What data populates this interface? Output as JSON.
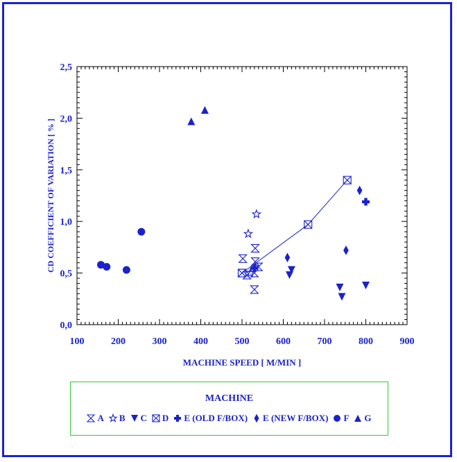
{
  "chart_data": {
    "type": "scatter",
    "title": "",
    "xlabel": "MACHINE SPEED  [ M/MIN ]",
    "ylabel": "CD COEFFICIENT OF VARIATION  [ % ]",
    "xlim": [
      100,
      900
    ],
    "ylim": [
      0,
      2.5
    ],
    "xticks": [
      "100",
      "200",
      "300",
      "400",
      "500",
      "600",
      "700",
      "800",
      "900"
    ],
    "yticks": [
      "0,0",
      "0,5",
      "1,0",
      "1,5",
      "2,0",
      "2,5"
    ],
    "grid": false,
    "legend_title": "MACHINE",
    "legend_position": "bottom",
    "color": "#1a22cc",
    "series": [
      {
        "name": "A",
        "marker": "hourglass",
        "points": [
          [
            500,
            0.5
          ],
          [
            502,
            0.64
          ],
          [
            512,
            0.48
          ],
          [
            530,
            0.34
          ],
          [
            530,
            0.5
          ],
          [
            532,
            0.61
          ],
          [
            532,
            0.74
          ],
          [
            540,
            0.56
          ]
        ]
      },
      {
        "name": "B",
        "marker": "star",
        "points": [
          [
            515,
            0.88
          ],
          [
            535,
            1.07
          ],
          [
            520,
            0.5
          ]
        ]
      },
      {
        "name": "C",
        "marker": "triangle-down",
        "points": [
          [
            615,
            0.48
          ],
          [
            620,
            0.53
          ],
          [
            737,
            0.36
          ],
          [
            742,
            0.27
          ],
          [
            800,
            0.38
          ]
        ]
      },
      {
        "name": "D",
        "marker": "boxed-x",
        "points": [
          [
            500,
            0.5
          ],
          [
            660,
            0.97
          ],
          [
            755,
            1.4
          ]
        ],
        "line": true
      },
      {
        "name": "E (OLD F/BOX)",
        "marker": "plus",
        "points": [
          [
            800,
            1.19
          ],
          [
            530,
            0.55
          ]
        ]
      },
      {
        "name": "E (NEW F/BOX)",
        "marker": "diamond",
        "points": [
          [
            610,
            0.65
          ],
          [
            752,
            0.72
          ],
          [
            785,
            1.3
          ]
        ]
      },
      {
        "name": "F",
        "marker": "circle",
        "points": [
          [
            158,
            0.58
          ],
          [
            172,
            0.56
          ],
          [
            220,
            0.53
          ],
          [
            256,
            0.9
          ]
        ]
      },
      {
        "name": "G",
        "marker": "triangle-up",
        "points": [
          [
            377,
            1.97
          ],
          [
            410,
            2.08
          ]
        ]
      }
    ]
  }
}
